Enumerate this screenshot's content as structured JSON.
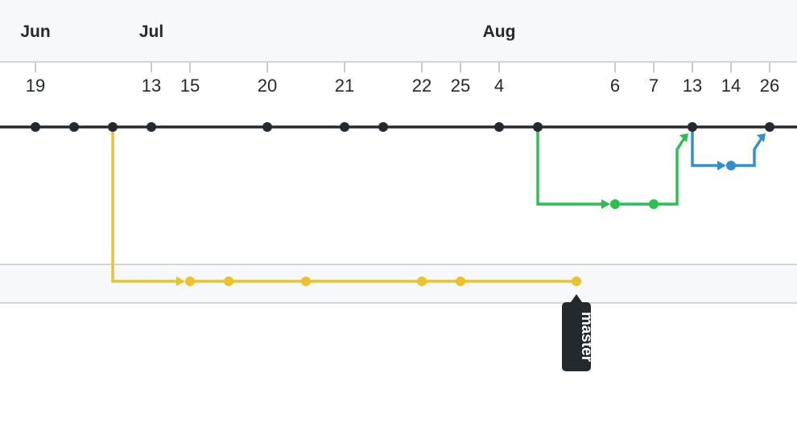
{
  "timeline": {
    "months": [
      {
        "label": "Jun",
        "col": 0
      },
      {
        "label": "Jul",
        "col": 3
      },
      {
        "label": "Aug",
        "col": 12
      }
    ],
    "days": [
      {
        "label": "19",
        "col": 0
      },
      {
        "label": "13",
        "col": 3
      },
      {
        "label": "15",
        "col": 4
      },
      {
        "label": "20",
        "col": 6
      },
      {
        "label": "21",
        "col": 8
      },
      {
        "label": "22",
        "col": 10
      },
      {
        "label": "25",
        "col": 11
      },
      {
        "label": "4",
        "col": 12
      },
      {
        "label": "6",
        "col": 15
      },
      {
        "label": "7",
        "col": 16
      },
      {
        "label": "13",
        "col": 17
      },
      {
        "label": "14",
        "col": 18
      },
      {
        "label": "26",
        "col": 19
      }
    ]
  },
  "branches": [
    {
      "id": "main",
      "color": "#24292e",
      "row": 0,
      "extends_both_edges": true,
      "commits": [
        0,
        1,
        2,
        3,
        6,
        8,
        9,
        12,
        13,
        17,
        19
      ]
    },
    {
      "id": "green",
      "color": "#2cbe4e",
      "row": 2,
      "from": {
        "row": 0,
        "col": 13
      },
      "commits": [
        15,
        16
      ],
      "to": {
        "row": 0,
        "col": 17
      }
    },
    {
      "id": "blue",
      "color": "#2f8fd2",
      "row": 1,
      "from": {
        "row": 0,
        "col": 17
      },
      "commits": [
        18
      ],
      "to": {
        "row": 0,
        "col": 19
      }
    },
    {
      "id": "master",
      "color": "#ecc12d",
      "row": 4,
      "from": {
        "row": 0,
        "col": 2
      },
      "commits": [
        4,
        5,
        7,
        10,
        11,
        14
      ]
    }
  ],
  "tags": [
    {
      "label": "master",
      "branch": "master",
      "col": 14,
      "bg": "#24292e"
    }
  ]
}
